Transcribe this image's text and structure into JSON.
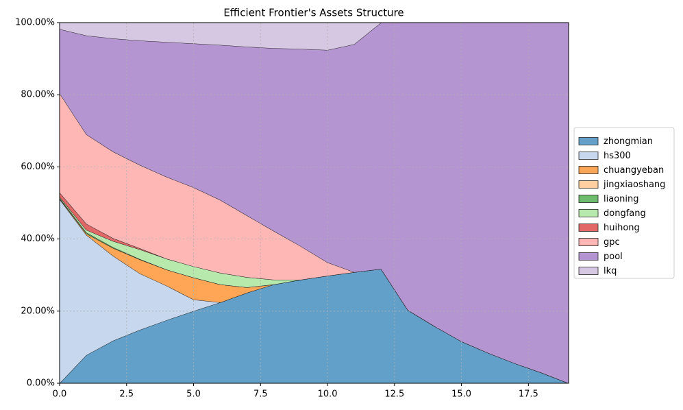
{
  "chart_data": {
    "type": "stacked-area",
    "title": "Efficient Frontier's Assets Structure",
    "x": [
      0,
      1,
      2,
      3,
      4,
      5,
      6,
      7,
      8,
      9,
      10,
      11,
      12,
      13,
      14,
      15,
      16,
      17,
      18,
      19
    ],
    "series": [
      {
        "name": "zhongmian",
        "color": "#62a0ca",
        "values": [
          0,
          7.8,
          11.8,
          14.8,
          17.5,
          20.0,
          22.4,
          25.1,
          27.4,
          28.7,
          29.8,
          30.8,
          31.7,
          20.3,
          15.8,
          11.6,
          8.4,
          5.5,
          2.9,
          0
        ]
      },
      {
        "name": "hs300",
        "color": "#c6d7ee",
        "values": [
          51.0,
          33.3,
          23.5,
          15.6,
          9.5,
          3.2,
          0,
          0,
          0,
          0,
          0,
          0,
          0,
          0,
          0,
          0,
          0,
          0,
          0,
          0
        ]
      },
      {
        "name": "chuangyeban",
        "color": "#ffa556",
        "values": [
          0.2,
          0.4,
          2.2,
          3.9,
          4.5,
          6.1,
          5.0,
          1.5,
          0,
          0,
          0,
          0,
          0,
          0,
          0,
          0,
          0,
          0,
          0,
          0
        ]
      },
      {
        "name": "jingxiaoshang",
        "color": "#ffcfa1",
        "values": [
          0,
          0,
          0,
          0,
          0,
          0,
          0,
          0,
          0,
          0,
          0,
          0,
          0,
          0,
          0,
          0,
          0,
          0,
          0,
          0
        ]
      },
      {
        "name": "liaoning",
        "color": "#6bbc6b",
        "values": [
          0.2,
          0.3,
          0.2,
          0.1,
          0,
          0,
          0,
          0,
          0,
          0,
          0,
          0,
          0,
          0,
          0,
          0,
          0,
          0,
          0,
          0
        ]
      },
      {
        "name": "dongfang",
        "color": "#b7e9ad",
        "values": [
          0.3,
          0.7,
          1.7,
          2.7,
          3.0,
          3.1,
          3.2,
          2.8,
          1.3,
          0,
          0,
          0,
          0,
          0,
          0,
          0,
          0,
          0,
          0,
          0
        ]
      },
      {
        "name": "huihong",
        "color": "#e26868",
        "values": [
          1.2,
          1.7,
          0.8,
          0.3,
          0,
          0,
          0,
          0,
          0,
          0,
          0,
          0,
          0,
          0,
          0,
          0,
          0,
          0,
          0,
          0
        ]
      },
      {
        "name": "gpc",
        "color": "#ffb7b6",
        "values": [
          27.5,
          24.8,
          24.0,
          23.1,
          22.7,
          21.9,
          20.2,
          17.1,
          13.5,
          9.3,
          3.7,
          0,
          0,
          0,
          0,
          0,
          0,
          0,
          0,
          0
        ]
      },
      {
        "name": "pool",
        "color": "#b495d1",
        "values": [
          17.8,
          27.4,
          31.4,
          34.5,
          37.4,
          39.9,
          43.0,
          46.8,
          50.7,
          54.7,
          58.9,
          63.2,
          68.3,
          79.7,
          84.2,
          88.4,
          91.6,
          94.5,
          97.1,
          100
        ]
      },
      {
        "name": "lkq",
        "color": "#d6c8e2",
        "values": [
          1.8,
          3.6,
          4.4,
          5.0,
          5.4,
          5.8,
          6.2,
          6.7,
          7.1,
          7.3,
          7.6,
          6.0,
          0,
          0,
          0,
          0,
          0,
          0,
          0,
          0
        ]
      }
    ],
    "xlim": [
      0,
      19
    ],
    "xticks": [
      {
        "value": 0,
        "label": "0.0"
      },
      2.5,
      {
        "value": 5,
        "label": "5.0"
      },
      7.5,
      {
        "value": 10,
        "label": "10.0"
      },
      12.5,
      {
        "value": 15,
        "label": "15.0"
      },
      17.5
    ],
    "ylim": [
      0,
      100
    ],
    "yticks": [
      {
        "value": 0,
        "label": "0.00%"
      },
      {
        "value": 20,
        "label": "20.00%"
      },
      {
        "value": 40,
        "label": "40.00%"
      },
      {
        "value": 60,
        "label": "60.00%"
      },
      {
        "value": 80,
        "label": "80.00%"
      },
      {
        "value": 100,
        "label": "100.00%"
      }
    ],
    "grid": true,
    "legend": "right"
  }
}
